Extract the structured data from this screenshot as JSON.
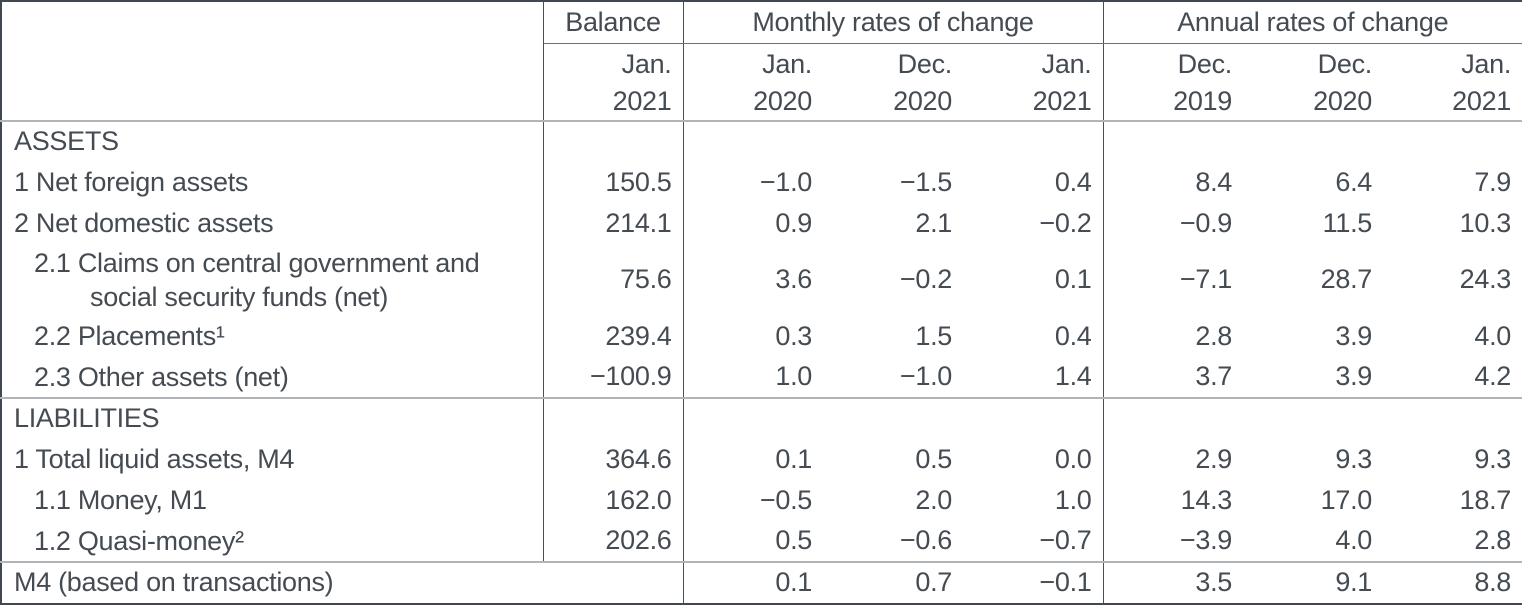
{
  "table": {
    "header": {
      "balance_label": "Balance",
      "monthly_label": "Monthly rates of change",
      "annual_label": "Annual rates of change",
      "balance_period": {
        "month": "Jan.",
        "year": "2021"
      },
      "monthly_periods": [
        {
          "month": "Jan.",
          "year": "2020"
        },
        {
          "month": "Dec.",
          "year": "2020"
        },
        {
          "month": "Jan.",
          "year": "2021"
        }
      ],
      "annual_periods": [
        {
          "month": "Dec.",
          "year": "2019"
        },
        {
          "month": "Dec.",
          "year": "2020"
        },
        {
          "month": "Jan.",
          "year": "2021"
        }
      ]
    },
    "rows": [
      {
        "label": "ASSETS"
      },
      {
        "label": "1 Net foreign assets",
        "balance": "150.5",
        "monthly": [
          "−1.0",
          "−1.5",
          "0.4"
        ],
        "annual": [
          "8.4",
          "6.4",
          "7.9"
        ]
      },
      {
        "label": "2 Net domestic assets",
        "balance": "214.1",
        "monthly": [
          "0.9",
          "2.1",
          "−0.2"
        ],
        "annual": [
          "−0.9",
          "11.5",
          "10.3"
        ]
      },
      {
        "label": "2.1 Claims on central government and\nsocial security funds (net)",
        "balance": "75.6",
        "monthly": [
          "3.6",
          "−0.2",
          "0.1"
        ],
        "annual": [
          "−7.1",
          "28.7",
          "24.3"
        ]
      },
      {
        "label": "2.2 Placements¹",
        "balance": "239.4",
        "monthly": [
          "0.3",
          "1.5",
          "0.4"
        ],
        "annual": [
          "2.8",
          "3.9",
          "4.0"
        ]
      },
      {
        "label": "2.3 Other assets (net)",
        "balance": "−100.9",
        "monthly": [
          "1.0",
          "−1.0",
          "1.4"
        ],
        "annual": [
          "3.7",
          "3.9",
          "4.2"
        ]
      },
      {
        "label": "LIABILITIES"
      },
      {
        "label": "1 Total liquid assets, M4",
        "balance": "364.6",
        "monthly": [
          "0.1",
          "0.5",
          "0.0"
        ],
        "annual": [
          "2.9",
          "9.3",
          "9.3"
        ]
      },
      {
        "label": "1.1 Money, M1",
        "balance": "162.0",
        "monthly": [
          "−0.5",
          "2.0",
          "1.0"
        ],
        "annual": [
          "14.3",
          "17.0",
          "18.7"
        ]
      },
      {
        "label": "1.2 Quasi-money²",
        "balance": "202.6",
        "monthly": [
          "0.5",
          "−0.6",
          "−0.7"
        ],
        "annual": [
          "−3.9",
          "4.0",
          "2.8"
        ]
      },
      {
        "label": "M4 (based on transactions)",
        "monthly": [
          "0.1",
          "0.7",
          "−0.1"
        ],
        "annual": [
          "3.5",
          "9.1",
          "8.8"
        ]
      }
    ]
  }
}
